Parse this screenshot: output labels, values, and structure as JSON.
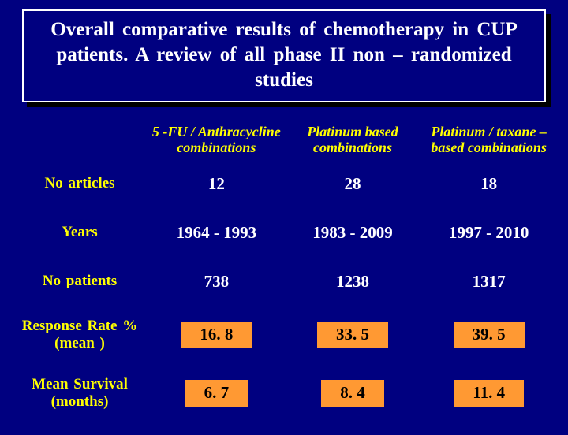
{
  "title": "Overall  comparative  results   of  chemotherapy  in CUP  patients.   A  review  of  all  phase  II  non – randomized  studies",
  "columns": {
    "c1": {
      "line1": "5 -FU / Anthracycline",
      "line2": "combinations"
    },
    "c2": {
      "line1": "Platinum  based",
      "line2": "combinations"
    },
    "c3": {
      "line1": "Platinum / taxane  –",
      "line2": "based combinations"
    }
  },
  "rows": {
    "articles": {
      "label": "No  articles",
      "c1": "12",
      "c2": "28",
      "c3": "18"
    },
    "years": {
      "label": "Years",
      "c1": "1964 - 1993",
      "c2": "1983 - 2009",
      "c3": "1997 - 2010"
    },
    "patients": {
      "label": "No patients",
      "c1": "738",
      "c2": "1238",
      "c3": "1317"
    },
    "response": {
      "label_l1": "Response  Rate %",
      "label_l2": "(mean )",
      "c1": "16. 8",
      "c2": "33. 5",
      "c3": "39. 5"
    },
    "survival": {
      "label_l1": "Mean  Survival",
      "label_l2": "(months)",
      "c1": "6. 7",
      "c2": "8. 4",
      "c3": "11. 4"
    }
  },
  "colors": {
    "background": "#000080",
    "title_text": "#ffffff",
    "header_text": "#ffff00",
    "cell_text": "#ffffff",
    "highlight_bg": "#ff9933",
    "highlight_text": "#000000",
    "shadow": "#000000"
  }
}
